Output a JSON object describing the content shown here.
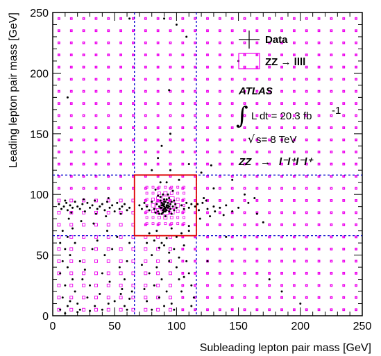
{
  "chart_data": {
    "type": "scatter",
    "xlabel": "Subleading lepton pair mass [GeV]",
    "ylabel": "Leading lepton pair mass [GeV]",
    "xlim": [
      0,
      250
    ],
    "ylim": [
      0,
      250
    ],
    "x_ticks": [
      "0",
      "50",
      "100",
      "150",
      "200",
      "250"
    ],
    "y_ticks": [
      "0",
      "50",
      "100",
      "150",
      "200",
      "250"
    ],
    "legend_position": "top-right",
    "legend": [
      {
        "label": "Data",
        "style": "black cross markers"
      },
      {
        "label": "ZZ → llll",
        "style": "magenta open boxes"
      }
    ],
    "annotations": {
      "experiment": "ATLAS",
      "lumi": "L dt = 20.3 fb",
      "lumi_sup": "-1",
      "energy": "s= 8 TeV",
      "process_prefix": "ZZ",
      "process_arrow": "→",
      "process_suffix": "l⁻l⁺l⁻l⁺"
    },
    "signal_region": {
      "x": [
        66,
        116
      ],
      "y": [
        66,
        116
      ],
      "color": "#dd0000"
    },
    "dashed_lines": {
      "x": [
        66,
        116
      ],
      "y": [
        66,
        116
      ],
      "color": "#0000cc"
    },
    "colors": {
      "data": "#000000",
      "mc": "#ee00ee",
      "region": "#dd0000",
      "lines": "#0000cc"
    },
    "series": [
      {
        "name": "Data",
        "points": [
          [
            5,
            92
          ],
          [
            7,
            88
          ],
          [
            9,
            90
          ],
          [
            11,
            93
          ],
          [
            12,
            87
          ],
          [
            14,
            91
          ],
          [
            16,
            89
          ],
          [
            18,
            94
          ],
          [
            20,
            90
          ],
          [
            22,
            88
          ],
          [
            24,
            92
          ],
          [
            26,
            86
          ],
          [
            28,
            93
          ],
          [
            30,
            89
          ],
          [
            32,
            91
          ],
          [
            34,
            95
          ],
          [
            36,
            88
          ],
          [
            38,
            90
          ],
          [
            40,
            92
          ],
          [
            42,
            87
          ],
          [
            44,
            94
          ],
          [
            46,
            89
          ],
          [
            48,
            91
          ],
          [
            50,
            86
          ],
          [
            52,
            93
          ],
          [
            54,
            88
          ],
          [
            56,
            90
          ],
          [
            58,
            92
          ],
          [
            60,
            87
          ],
          [
            62,
            89
          ],
          [
            10,
            95
          ],
          [
            15,
            85
          ],
          [
            25,
            96
          ],
          [
            35,
            84
          ],
          [
            45,
            97
          ],
          [
            55,
            84
          ],
          [
            13,
            80
          ],
          [
            23,
            78
          ],
          [
            33,
            76
          ],
          [
            43,
            82
          ],
          [
            8,
            70
          ],
          [
            12,
            65
          ],
          [
            6,
            60
          ],
          [
            10,
            55
          ],
          [
            14,
            50
          ],
          [
            8,
            45
          ],
          [
            12,
            40
          ],
          [
            6,
            35
          ],
          [
            16,
            30
          ],
          [
            10,
            25
          ],
          [
            18,
            20
          ],
          [
            8,
            15
          ],
          [
            14,
            12
          ],
          [
            20,
            10
          ],
          [
            12,
            8
          ],
          [
            6,
            5
          ],
          [
            22,
            5
          ],
          [
            18,
            60
          ],
          [
            22,
            45
          ],
          [
            26,
            38
          ],
          [
            30,
            25
          ],
          [
            28,
            15
          ],
          [
            34,
            8
          ],
          [
            38,
            18
          ],
          [
            40,
            35
          ],
          [
            42,
            50
          ],
          [
            36,
            62
          ],
          [
            46,
            28
          ],
          [
            50,
            12
          ],
          [
            54,
            40
          ],
          [
            56,
            22
          ],
          [
            58,
            8
          ],
          [
            60,
            5
          ],
          [
            62,
            14
          ],
          [
            48,
            55
          ],
          [
            52,
            65
          ],
          [
            44,
            70
          ],
          [
            32,
            55
          ],
          [
            24,
            30
          ],
          [
            16,
            72
          ],
          [
            58,
            30
          ],
          [
            60,
            45
          ],
          [
            62,
            60
          ],
          [
            64,
            20
          ],
          [
            40,
            5
          ],
          [
            30,
            4
          ],
          [
            20,
            3
          ],
          [
            10,
            2
          ],
          [
            45,
            10
          ],
          [
            55,
            18
          ],
          [
            80,
            94
          ],
          [
            82,
            88
          ],
          [
            84,
            92
          ],
          [
            85,
            86
          ],
          [
            86,
            90
          ],
          [
            87,
            95
          ],
          [
            88,
            89
          ],
          [
            88,
            93
          ],
          [
            89,
            87
          ],
          [
            89,
            91
          ],
          [
            90,
            88
          ],
          [
            90,
            92
          ],
          [
            90,
            90
          ],
          [
            91,
            86
          ],
          [
            91,
            94
          ],
          [
            91,
            89
          ],
          [
            92,
            91
          ],
          [
            92,
            87
          ],
          [
            93,
            93
          ],
          [
            93,
            89
          ],
          [
            94,
            90
          ],
          [
            94,
            86
          ],
          [
            95,
            92
          ],
          [
            95,
            88
          ],
          [
            96,
            94
          ],
          [
            97,
            90
          ],
          [
            98,
            87
          ],
          [
            99,
            92
          ],
          [
            100,
            89
          ],
          [
            86,
            84
          ],
          [
            88,
            84
          ],
          [
            92,
            96
          ],
          [
            94,
            97
          ],
          [
            87,
            98
          ],
          [
            83,
            85
          ],
          [
            96,
            84
          ],
          [
            98,
            95
          ],
          [
            85,
            99
          ],
          [
            91,
            82
          ],
          [
            89,
            100
          ],
          [
            90,
            96
          ],
          [
            89,
            85
          ],
          [
            92,
            90
          ],
          [
            90,
            86
          ],
          [
            88,
            91
          ],
          [
            91,
            88
          ],
          [
            93,
            91
          ],
          [
            87,
            89
          ],
          [
            90,
            94
          ],
          [
            89,
            92
          ],
          [
            70,
            91
          ],
          [
            72,
            88
          ],
          [
            74,
            93
          ],
          [
            76,
            90
          ],
          [
            78,
            87
          ],
          [
            104,
            91
          ],
          [
            106,
            88
          ],
          [
            108,
            93
          ],
          [
            110,
            89
          ],
          [
            112,
            92
          ],
          [
            115,
            90
          ],
          [
            118,
            87
          ],
          [
            121,
            93
          ],
          [
            125,
            88
          ],
          [
            130,
            90
          ],
          [
            122,
            97
          ],
          [
            135,
            89
          ],
          [
            140,
            91
          ],
          [
            150,
            89
          ],
          [
            158,
            93
          ],
          [
            165,
            84
          ],
          [
            170,
            77
          ],
          [
            127,
            82
          ],
          [
            119,
            80
          ],
          [
            110,
            74
          ],
          [
            145,
            86
          ],
          [
            124,
            95
          ],
          [
            131,
            86
          ],
          [
            138,
            83
          ],
          [
            117,
            92
          ],
          [
            76,
            60
          ],
          [
            80,
            50
          ],
          [
            84,
            40
          ],
          [
            88,
            30
          ],
          [
            92,
            20
          ],
          [
            96,
            10
          ],
          [
            78,
            35
          ],
          [
            82,
            25
          ],
          [
            86,
            15
          ],
          [
            90,
            8
          ],
          [
            94,
            45
          ],
          [
            98,
            55
          ],
          [
            100,
            40
          ],
          [
            102,
            30
          ],
          [
            104,
            20
          ],
          [
            106,
            58
          ],
          [
            108,
            45
          ],
          [
            110,
            35
          ],
          [
            112,
            25
          ],
          [
            114,
            15
          ],
          [
            92,
            64
          ],
          [
            88,
            60
          ],
          [
            84,
            70
          ],
          [
            96,
            72
          ],
          [
            100,
            65
          ],
          [
            86,
            56
          ],
          [
            94,
            52
          ],
          [
            98,
            5
          ],
          [
            76,
            12
          ],
          [
            80,
            5
          ],
          [
            78,
            68
          ],
          [
            82,
            62
          ],
          [
            90,
            58
          ],
          [
            104,
            68
          ],
          [
            110,
            70
          ],
          [
            102,
            48
          ],
          [
            106,
            32
          ],
          [
            112,
            8
          ],
          [
            72,
            42
          ],
          [
            74,
            22
          ],
          [
            85,
            130
          ],
          [
            88,
            140
          ],
          [
            92,
            110
          ],
          [
            95,
            120
          ],
          [
            90,
            245
          ],
          [
            100,
            240
          ],
          [
            12,
            180
          ],
          [
            150,
            210
          ],
          [
            95,
            150
          ],
          [
            110,
            125
          ],
          [
            120,
            118
          ],
          [
            128,
            124
          ],
          [
            130,
            105
          ],
          [
            102,
            112
          ],
          [
            87,
            110
          ],
          [
            93,
            100
          ],
          [
            83,
            104
          ],
          [
            97,
            103
          ],
          [
            80,
            120
          ],
          [
            94,
            186
          ],
          [
            175,
            30
          ],
          [
            185,
            20
          ],
          [
            200,
            10
          ],
          [
            155,
            100
          ],
          [
            163,
            97
          ],
          [
            145,
            112
          ],
          [
            108,
            230
          ],
          [
            62,
            245
          ],
          [
            140,
            65
          ],
          [
            125,
            45
          ]
        ]
      },
      {
        "name": "ZZ → llll",
        "grid_step": 10,
        "dense_x": [
          66,
          116
        ],
        "dense_y": [
          66,
          116
        ],
        "dense_step": 5
      }
    ]
  }
}
